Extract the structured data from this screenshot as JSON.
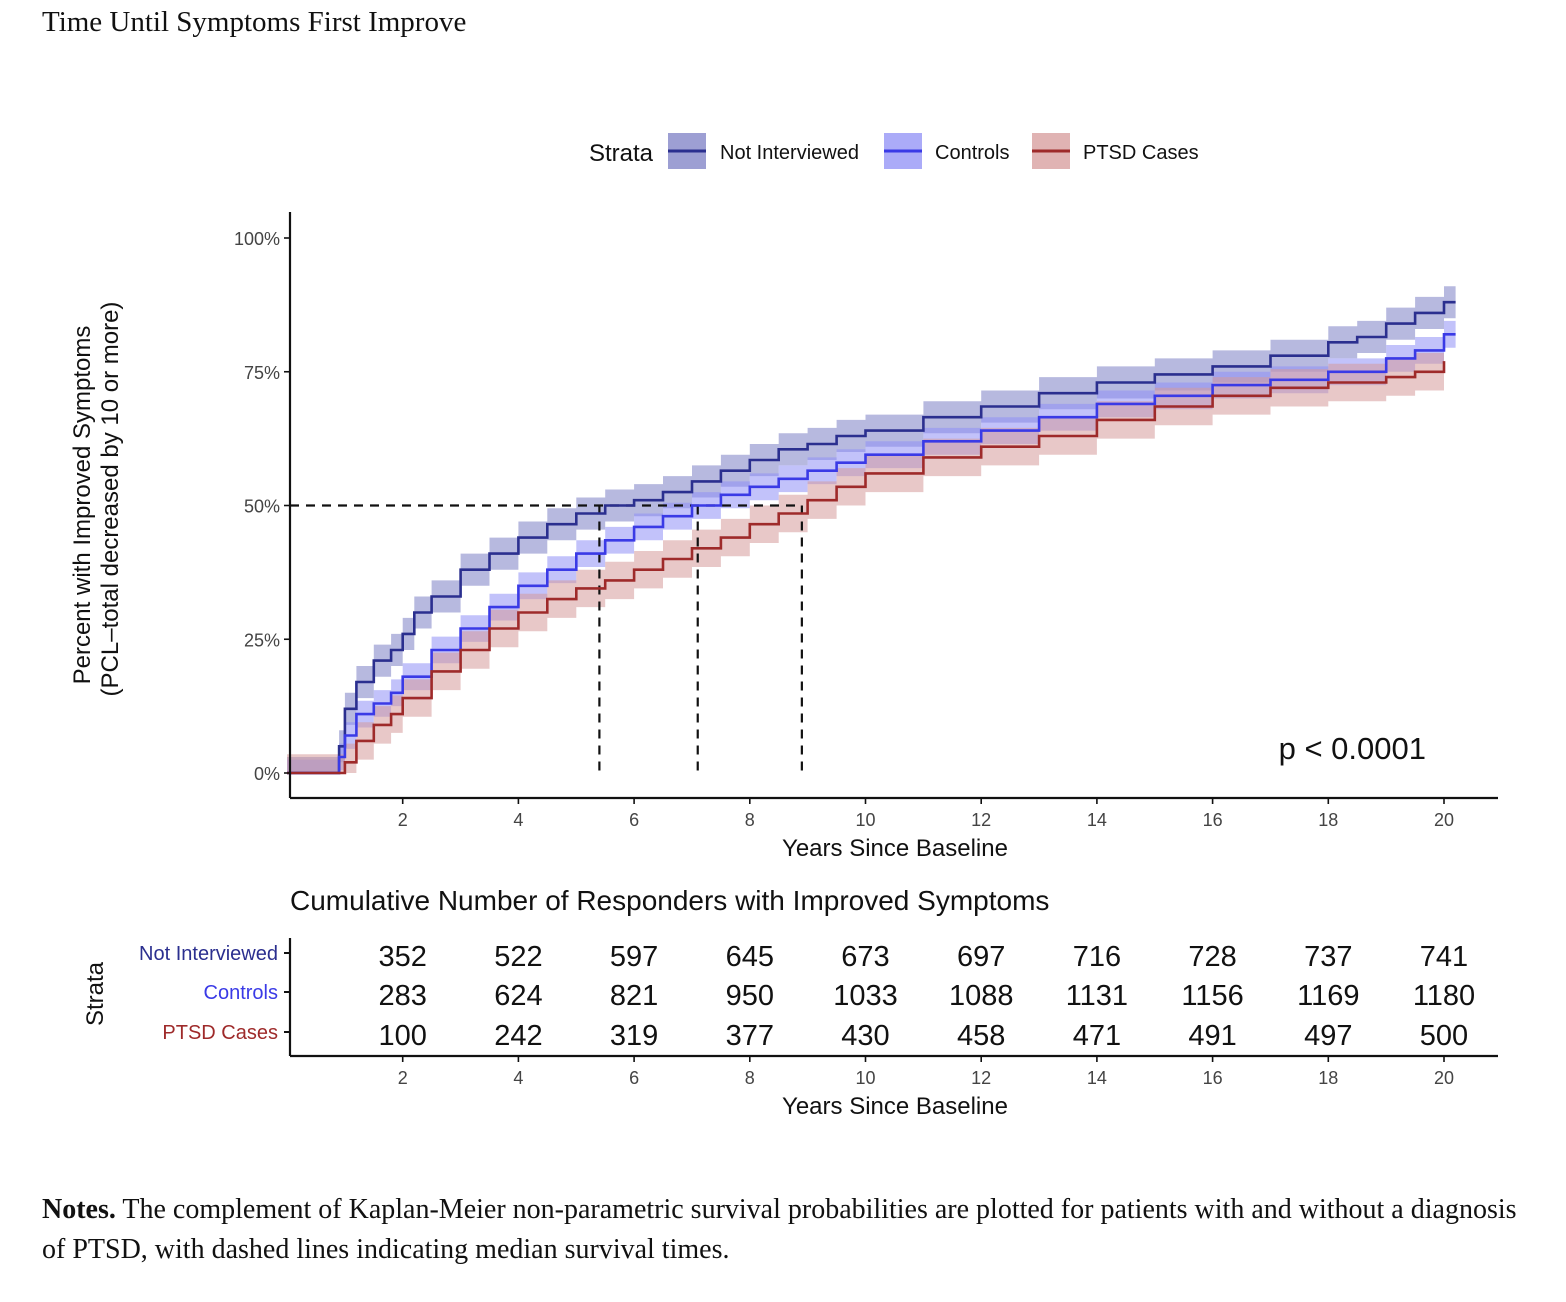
{
  "figure_title": "Time Until Symptoms First Improve",
  "notes": {
    "label": "Notes.",
    "text": " The complement of Kaplan-Meier non-parametric survival probabilities are plotted for patients with and without a diagnosis of PTSD, with dashed lines indicating median survival times."
  },
  "chart_data": {
    "type": "line",
    "title": "",
    "xlabel": "Years Since Baseline",
    "ylabel": "Percent with Improved Symptoms",
    "ylabel2": "(PCL–total decreased by 10 or more)",
    "xlim": [
      0,
      21
    ],
    "ylim": [
      0,
      100
    ],
    "x_ticks": [
      2,
      4,
      6,
      8,
      10,
      12,
      14,
      16,
      18,
      20
    ],
    "y_ticks": [
      "0%",
      "25%",
      "50%",
      "75%",
      "100%"
    ],
    "y_tick_values": [
      0,
      25,
      50,
      75,
      100
    ],
    "grid": false,
    "legend": {
      "title": "Strata",
      "position": "top"
    },
    "annotation": "p < 0.0001",
    "median_line_y": 50,
    "median_times": [
      5.4,
      7.1,
      8.9
    ],
    "series": [
      {
        "name": "Not Interviewed",
        "color": "#2b2f8f",
        "band_color": "#7c7fc4",
        "x": [
          0,
          0.8,
          0.9,
          1.0,
          1.2,
          1.5,
          1.8,
          2.0,
          2.2,
          2.5,
          3.0,
          3.5,
          4.0,
          4.5,
          5.0,
          5.5,
          6.0,
          6.5,
          7.0,
          7.5,
          8.0,
          8.5,
          9.0,
          9.5,
          10.0,
          11.0,
          12.0,
          13.0,
          14.0,
          15.0,
          16.0,
          17.0,
          18.0,
          18.5,
          19.0,
          19.5,
          20.0,
          20.2
        ],
        "y": [
          0,
          0,
          5,
          12,
          17,
          21,
          23,
          26,
          30,
          33,
          38,
          41,
          44,
          46.5,
          48.5,
          50,
          51,
          52.5,
          54.5,
          56.5,
          58.5,
          60.5,
          61.5,
          63,
          64,
          66.5,
          68.5,
          71,
          73,
          74.5,
          76,
          78,
          80.5,
          81.5,
          84,
          86,
          88,
          88
        ],
        "band_width": 3
      },
      {
        "name": "Controls",
        "color": "#3a3ae6",
        "band_color": "#8f8ff5",
        "x": [
          0,
          0.8,
          0.9,
          1.0,
          1.2,
          1.5,
          1.8,
          2.0,
          2.5,
          3.0,
          3.5,
          4.0,
          4.5,
          5.0,
          5.5,
          6.0,
          6.5,
          7.0,
          7.5,
          8.0,
          8.5,
          9.0,
          9.5,
          10.0,
          11.0,
          12.0,
          13.0,
          14.0,
          15.0,
          16.0,
          17.0,
          18.0,
          19.0,
          19.5,
          20.0,
          20.2
        ],
        "y": [
          0,
          0,
          3,
          7,
          11,
          13,
          15,
          18,
          23,
          27,
          31,
          35,
          38,
          41,
          43.5,
          46,
          48,
          50,
          52,
          53.5,
          55,
          56.5,
          58,
          59.5,
          62,
          64,
          66.5,
          69,
          70.5,
          72.5,
          73.5,
          75,
          77.5,
          79,
          82,
          82
        ],
        "band_width": 2.5
      },
      {
        "name": "PTSD Cases",
        "color": "#9e2a2a",
        "band_color": "#d59a9a",
        "x": [
          0,
          0.9,
          1.0,
          1.2,
          1.5,
          1.8,
          2.0,
          2.5,
          3.0,
          3.5,
          4.0,
          4.5,
          5.0,
          5.5,
          6.0,
          6.5,
          7.0,
          7.5,
          8.0,
          8.5,
          9.0,
          9.5,
          10.0,
          11.0,
          12.0,
          13.0,
          14.0,
          15.0,
          16.0,
          17.0,
          18.0,
          19.0,
          19.5,
          20.0
        ],
        "y": [
          0,
          0,
          2,
          6,
          9,
          11,
          14,
          19,
          23,
          27,
          30,
          32.5,
          34.5,
          36,
          38,
          40,
          42,
          44,
          46.5,
          48.5,
          51,
          53.5,
          56,
          59,
          61,
          63,
          66,
          68.5,
          70.5,
          72,
          73,
          74,
          75,
          77
        ],
        "band_width": 3.5
      }
    ],
    "risk_table": {
      "title": "Cumulative Number of Responders with Improved Symptoms",
      "ylabel": "Strata",
      "xlabel": "Years Since Baseline",
      "x": [
        2,
        4,
        6,
        8,
        10,
        12,
        14,
        16,
        18,
        20
      ],
      "rows": [
        {
          "name": "Not Interviewed",
          "color": "#2b2f8f",
          "values": [
            352,
            522,
            597,
            645,
            673,
            697,
            716,
            728,
            737,
            741
          ]
        },
        {
          "name": "Controls",
          "color": "#3a3ae6",
          "values": [
            283,
            624,
            821,
            950,
            1033,
            1088,
            1131,
            1156,
            1169,
            1180
          ]
        },
        {
          "name": "PTSD Cases",
          "color": "#9e2a2a",
          "values": [
            100,
            242,
            319,
            377,
            430,
            458,
            471,
            491,
            497,
            500
          ]
        }
      ]
    }
  }
}
